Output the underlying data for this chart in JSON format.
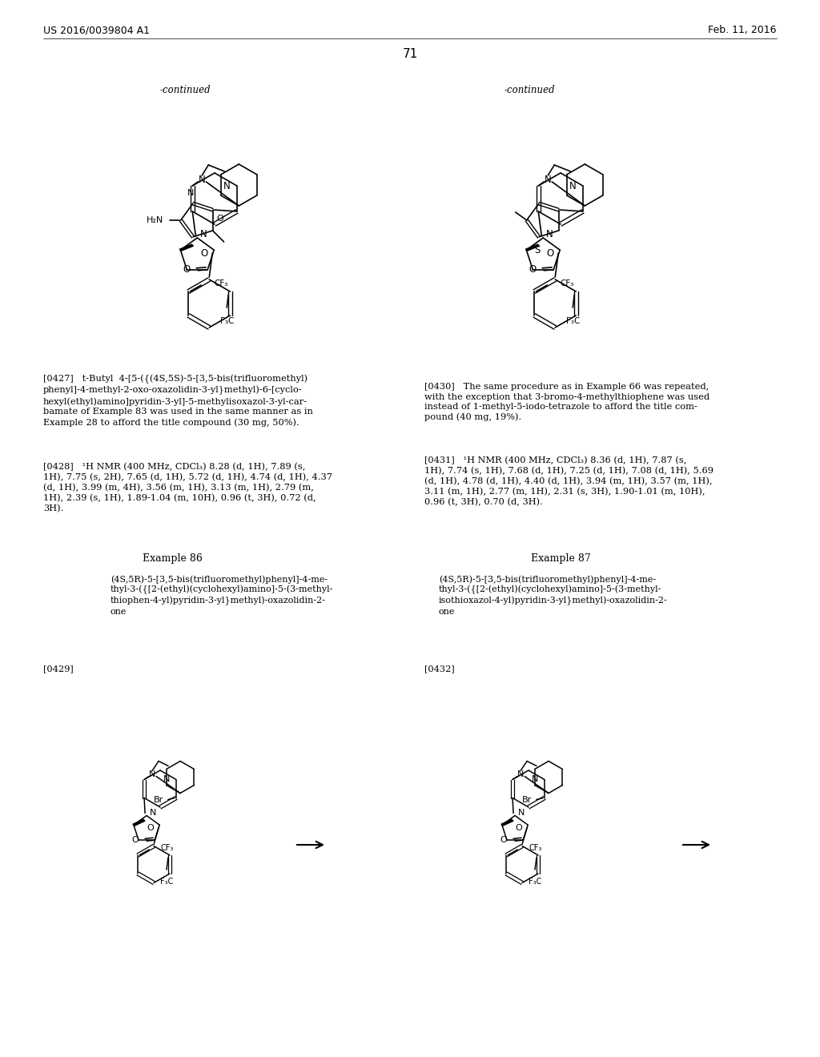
{
  "page_number": "71",
  "header_left": "US 2016/0039804 A1",
  "header_right": "Feb. 11, 2016",
  "continued_left": "-continued",
  "continued_right": "-continued",
  "example86_title": "Example 86",
  "example87_title": "Example 87",
  "example86_compound": "(4S,5R)-5-[3,5-bis(trifluoromethyl)phenyl]-4-me-\nthyl-3-({[2-(ethyl)(cyclohexyl)amino]-5-(3-methyl-\nthiophen-4-yl)pyridin-3-yl}methyl)-oxazolidin-2-\none",
  "example87_compound": "(4S,5R)-5-[3,5-bis(trifluoromethyl)phenyl]-4-me-\nthyl-3-({[2-(ethyl)(cyclohexyl)amino]-5-(3-methyl-\nisothioxazol-4-yl)pyridin-3-yl}methyl)-oxazolidin-2-\none",
  "para0427": "[0427]   t-Butyl  4-[5-({(4S,5S)-5-[3,5-bis(trifluoromethyl)\nphenyl]-4-methyl-2-oxo-oxazolidin-3-yl}methyl)-6-[cyclo-\nhexyl(ethyl)amino]pyridin-3-yl]-5-methylisoxazol-3-yl-car-\nbamate of Example 83 was used in the same manner as in\nExample 28 to afford the title compound (30 mg, 50%).",
  "para0428": "[0428]   ¹H NMR (400 MHz, CDCl₃) 8.28 (d, 1H), 7.89 (s,\n1H), 7.75 (s, 2H), 7.65 (d, 1H), 5.72 (d, 1H), 4.74 (d, 1H), 4.37\n(d, 1H), 3.99 (m, 4H), 3.56 (m, 1H), 3.13 (m, 1H), 2.79 (m,\n1H), 2.39 (s, 1H), 1.89-1.04 (m, 10H), 0.96 (t, 3H), 0.72 (d,\n3H).",
  "para0429": "[0429]",
  "para0430": "[0430]   The same procedure as in Example 66 was repeated,\nwith the exception that 3-bromo-4-methylthiophene was used\ninstead of 1-methyl-5-iodo-tetrazole to afford the title com-\npound (40 mg, 19%).",
  "para0431": "[0431]   ¹H NMR (400 MHz, CDCl₃) 8.36 (d, 1H), 7.87 (s,\n1H), 7.74 (s, 1H), 7.68 (d, 1H), 7.25 (d, 1H), 7.08 (d, 1H), 5.69\n(d, 1H), 4.78 (d, 1H), 4.40 (d, 1H), 3.94 (m, 1H), 3.57 (m, 1H),\n3.11 (m, 1H), 2.77 (m, 1H), 2.31 (s, 3H), 1.90-1.01 (m, 10H),\n0.96 (t, 3H), 0.70 (d, 3H).",
  "para0432": "[0432]",
  "bg": "#ffffff",
  "fg": "#000000"
}
